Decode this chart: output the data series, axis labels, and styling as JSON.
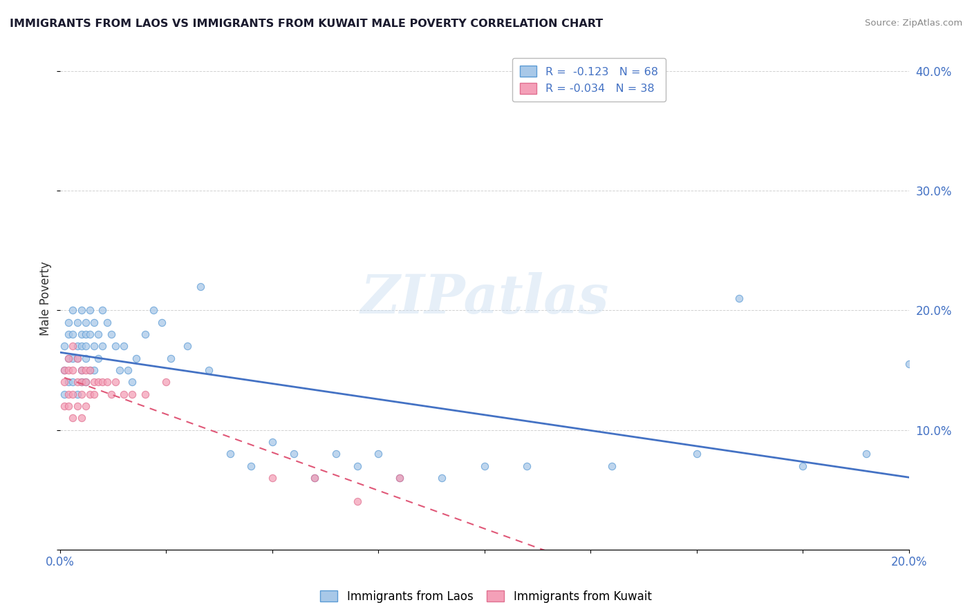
{
  "title": "IMMIGRANTS FROM LAOS VS IMMIGRANTS FROM KUWAIT MALE POVERTY CORRELATION CHART",
  "source": "Source: ZipAtlas.com",
  "ylabel_label": "Male Poverty",
  "xlim": [
    0.0,
    0.2
  ],
  "ylim": [
    0.0,
    0.42
  ],
  "xtick_positions": [
    0.0,
    0.025,
    0.05,
    0.075,
    0.1,
    0.125,
    0.15,
    0.175,
    0.2
  ],
  "xtick_labels": [
    "0.0%",
    "",
    "",
    "",
    "",
    "",
    "",
    "",
    "20.0%"
  ],
  "ytick_positions": [
    0.0,
    0.1,
    0.2,
    0.3,
    0.4
  ],
  "ytick_labels": [
    "",
    "10.0%",
    "20.0%",
    "30.0%",
    "40.0%"
  ],
  "legend_r1": "R =  -0.123   N = 68",
  "legend_r2": "R = -0.034   N = 38",
  "color_laos": "#a8c8e8",
  "color_kuwait": "#f4a0b8",
  "edge_laos": "#5b9bd5",
  "edge_kuwait": "#e07090",
  "line_color_laos": "#4472c4",
  "line_color_kuwait": "#e05878",
  "watermark": "ZIPatlas",
  "laos_x": [
    0.001,
    0.001,
    0.001,
    0.002,
    0.002,
    0.002,
    0.002,
    0.003,
    0.003,
    0.003,
    0.003,
    0.004,
    0.004,
    0.004,
    0.004,
    0.005,
    0.005,
    0.005,
    0.005,
    0.005,
    0.006,
    0.006,
    0.006,
    0.006,
    0.006,
    0.007,
    0.007,
    0.007,
    0.008,
    0.008,
    0.008,
    0.009,
    0.009,
    0.01,
    0.01,
    0.011,
    0.012,
    0.013,
    0.014,
    0.015,
    0.016,
    0.017,
    0.018,
    0.02,
    0.022,
    0.024,
    0.026,
    0.03,
    0.033,
    0.035,
    0.04,
    0.045,
    0.05,
    0.055,
    0.06,
    0.065,
    0.07,
    0.075,
    0.08,
    0.09,
    0.1,
    0.11,
    0.13,
    0.15,
    0.16,
    0.175,
    0.19,
    0.2
  ],
  "laos_y": [
    0.17,
    0.15,
    0.13,
    0.19,
    0.18,
    0.16,
    0.14,
    0.2,
    0.18,
    0.16,
    0.14,
    0.19,
    0.17,
    0.16,
    0.13,
    0.2,
    0.18,
    0.17,
    0.15,
    0.14,
    0.19,
    0.18,
    0.17,
    0.16,
    0.14,
    0.2,
    0.18,
    0.15,
    0.19,
    0.17,
    0.15,
    0.18,
    0.16,
    0.2,
    0.17,
    0.19,
    0.18,
    0.17,
    0.15,
    0.17,
    0.15,
    0.14,
    0.16,
    0.18,
    0.2,
    0.19,
    0.16,
    0.17,
    0.22,
    0.15,
    0.08,
    0.07,
    0.09,
    0.08,
    0.06,
    0.08,
    0.07,
    0.08,
    0.06,
    0.06,
    0.07,
    0.07,
    0.07,
    0.08,
    0.21,
    0.07,
    0.08,
    0.155
  ],
  "kuwait_x": [
    0.001,
    0.001,
    0.001,
    0.002,
    0.002,
    0.002,
    0.002,
    0.003,
    0.003,
    0.003,
    0.003,
    0.004,
    0.004,
    0.004,
    0.005,
    0.005,
    0.005,
    0.005,
    0.006,
    0.006,
    0.006,
    0.007,
    0.007,
    0.008,
    0.008,
    0.009,
    0.01,
    0.011,
    0.012,
    0.013,
    0.015,
    0.017,
    0.02,
    0.025,
    0.05,
    0.06,
    0.07,
    0.08
  ],
  "kuwait_y": [
    0.15,
    0.14,
    0.12,
    0.16,
    0.15,
    0.13,
    0.12,
    0.17,
    0.15,
    0.13,
    0.11,
    0.16,
    0.14,
    0.12,
    0.15,
    0.14,
    0.13,
    0.11,
    0.15,
    0.14,
    0.12,
    0.15,
    0.13,
    0.14,
    0.13,
    0.14,
    0.14,
    0.14,
    0.13,
    0.14,
    0.13,
    0.13,
    0.13,
    0.14,
    0.06,
    0.06,
    0.04,
    0.06
  ]
}
